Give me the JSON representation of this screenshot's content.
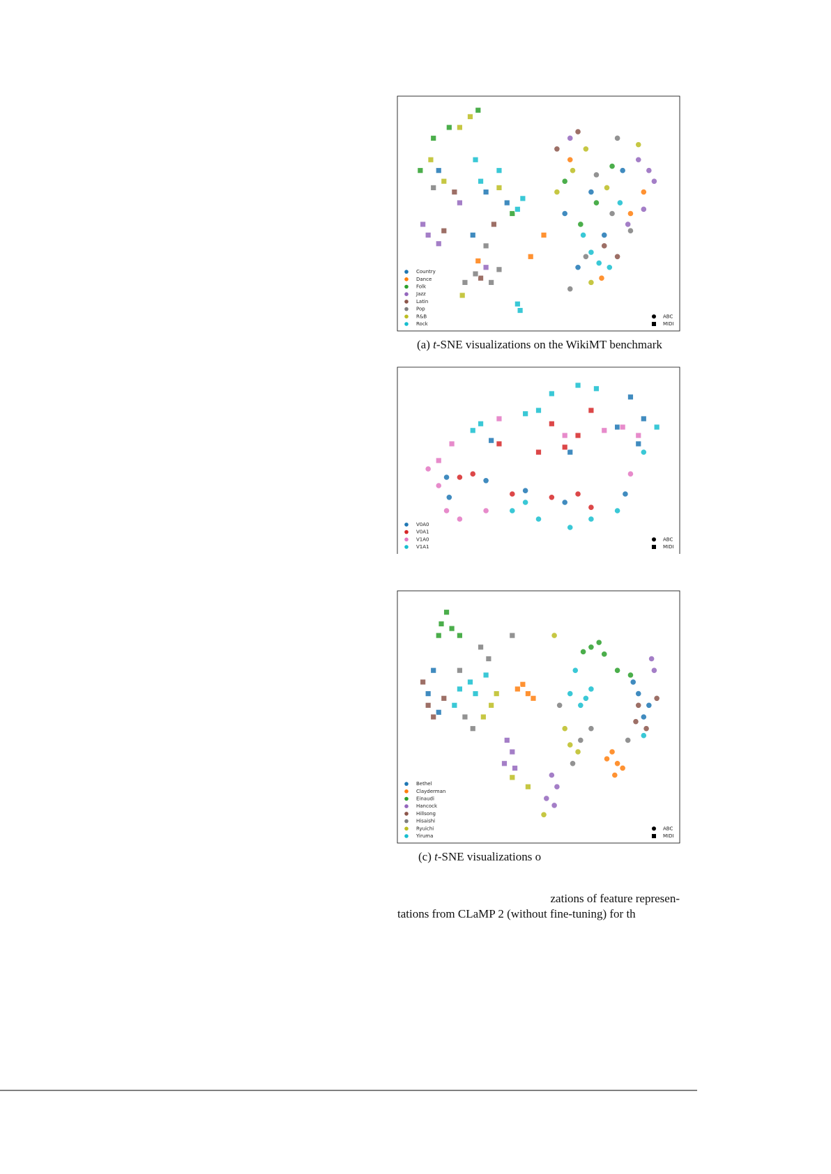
{
  "chart_data": [
    {
      "type": "scatter",
      "xlim": [
        0,
        100
      ],
      "ylim": [
        0,
        100
      ],
      "caption": {
        "prefix": "(a) ",
        "italic": "t",
        "text": "-SNE visualizations on the WikiMT benchmark"
      },
      "marker_legend": [
        {
          "label": "ABC",
          "marker": "circle"
        },
        {
          "label": "MIDI",
          "marker": "square"
        }
      ],
      "series": [
        {
          "name": "Country",
          "color": "#1f77b4",
          "groups": [
            {
              "marker": "square",
              "x": [
                30,
                25,
                38,
                12
              ],
              "y": [
                60,
                40,
                55,
                70
              ]
            },
            {
              "marker": "circle",
              "x": [
                60,
                70,
                82,
                65,
                75
              ],
              "y": [
                50,
                60,
                70,
                25,
                40
              ]
            }
          ]
        },
        {
          "name": "Dance",
          "color": "#ff7f0e",
          "groups": [
            {
              "marker": "square",
              "x": [
                47,
                52,
                27
              ],
              "y": [
                30,
                40,
                28
              ]
            },
            {
              "marker": "circle",
              "x": [
                62,
                85,
                74,
                90
              ],
              "y": [
                75,
                50,
                20,
                60
              ]
            }
          ]
        },
        {
          "name": "Folk",
          "color": "#2ca02c",
          "groups": [
            {
              "marker": "square",
              "x": [
                10,
                16,
                27,
                5,
                40
              ],
              "y": [
                85,
                90,
                98,
                70,
                50
              ]
            },
            {
              "marker": "circle",
              "x": [
                60,
                66,
                72,
                78
              ],
              "y": [
                65,
                45,
                55,
                72
              ]
            }
          ]
        },
        {
          "name": "Jazz",
          "color": "#9467bd",
          "groups": [
            {
              "marker": "square",
              "x": [
                8,
                12,
                6,
                30,
                20
              ],
              "y": [
                40,
                36,
                45,
                25,
                55
              ]
            },
            {
              "marker": "circle",
              "x": [
                92,
                94,
                88,
                84,
                90,
                62
              ],
              "y": [
                70,
                65,
                75,
                45,
                52,
                85
              ]
            }
          ]
        },
        {
          "name": "Latin",
          "color": "#8c564b",
          "groups": [
            {
              "marker": "square",
              "x": [
                14,
                28,
                33,
                18
              ],
              "y": [
                42,
                20,
                45,
                60
              ]
            },
            {
              "marker": "circle",
              "x": [
                57,
                65,
                75,
                80
              ],
              "y": [
                80,
                88,
                35,
                30
              ]
            }
          ]
        },
        {
          "name": "Pop",
          "color": "#7f7f7f",
          "groups": [
            {
              "marker": "square",
              "x": [
                26,
                22,
                32,
                30,
                35,
                10
              ],
              "y": [
                22,
                18,
                18,
                35,
                24,
                62
              ]
            },
            {
              "marker": "circle",
              "x": [
                68,
                78,
                85,
                62,
                72,
                80
              ],
              "y": [
                30,
                50,
                42,
                15,
                68,
                85
              ]
            }
          ]
        },
        {
          "name": "R&B",
          "color": "#bcbd22",
          "groups": [
            {
              "marker": "square",
              "x": [
                20,
                24,
                9,
                14,
                35,
                21
              ],
              "y": [
                90,
                95,
                75,
                65,
                62,
                12
              ]
            },
            {
              "marker": "circle",
              "x": [
                57,
                63,
                68,
                76,
                70,
                88
              ],
              "y": [
                60,
                70,
                80,
                62,
                18,
                82
              ]
            }
          ]
        },
        {
          "name": "Rock",
          "color": "#17becf",
          "groups": [
            {
              "marker": "square",
              "x": [
                28,
                35,
                42,
                26,
                44,
                42,
                43
              ],
              "y": [
                65,
                70,
                52,
                75,
                57,
                8,
                5
              ]
            },
            {
              "marker": "circle",
              "x": [
                70,
                73,
                67,
                77,
                81
              ],
              "y": [
                32,
                27,
                40,
                25,
                55
              ]
            }
          ]
        }
      ]
    },
    {
      "type": "scatter",
      "xlim": [
        0,
        100
      ],
      "ylim": [
        0,
        100
      ],
      "marker_legend": [
        {
          "label": "ABC",
          "marker": "circle"
        },
        {
          "label": "MIDI",
          "marker": "square"
        }
      ],
      "series": [
        {
          "name": "V0A0",
          "color": "#1f77b4",
          "groups": [
            {
              "marker": "square",
              "x": [
                62,
                80,
                85,
                90,
                32,
                88
              ],
              "y": [
                55,
                70,
                88,
                75,
                62,
                60
              ]
            },
            {
              "marker": "circle",
              "x": [
                16,
                30,
                45,
                60,
                83,
                15
              ],
              "y": [
                28,
                38,
                32,
                25,
                30,
                40
              ]
            }
          ]
        },
        {
          "name": "V0A1",
          "color": "#d62728",
          "groups": [
            {
              "marker": "square",
              "x": [
                35,
                55,
                65,
                70,
                60,
                50
              ],
              "y": [
                60,
                72,
                65,
                80,
                58,
                55
              ]
            },
            {
              "marker": "circle",
              "x": [
                20,
                25,
                40,
                55,
                70,
                65
              ],
              "y": [
                40,
                42,
                30,
                28,
                22,
                30
              ]
            }
          ]
        },
        {
          "name": "V1A0",
          "color": "#e377c2",
          "groups": [
            {
              "marker": "square",
              "x": [
                17,
                12,
                35,
                60,
                75,
                88,
                82
              ],
              "y": [
                60,
                50,
                75,
                65,
                68,
                65,
                70
              ]
            },
            {
              "marker": "circle",
              "x": [
                8,
                15,
                20,
                12,
                30,
                85
              ],
              "y": [
                45,
                20,
                15,
                35,
                20,
                42
              ]
            }
          ]
        },
        {
          "name": "V1A1",
          "color": "#17becf",
          "groups": [
            {
              "marker": "square",
              "x": [
                25,
                28,
                45,
                55,
                65,
                72,
                50,
                95
              ],
              "y": [
                68,
                72,
                78,
                90,
                95,
                93,
                80,
                70
              ]
            },
            {
              "marker": "circle",
              "x": [
                40,
                50,
                62,
                70,
                80,
                90,
                45
              ],
              "y": [
                20,
                15,
                10,
                15,
                20,
                55,
                25
              ]
            }
          ]
        }
      ]
    },
    {
      "type": "scatter",
      "xlim": [
        0,
        100
      ],
      "ylim": [
        0,
        100
      ],
      "caption": {
        "prefix": "(c) ",
        "italic": "t",
        "text": "-SNE visualizations o"
      },
      "marker_legend": [
        {
          "label": "ABC",
          "marker": "circle"
        },
        {
          "label": "MIDI",
          "marker": "square"
        }
      ],
      "series": [
        {
          "name": "Bethel",
          "color": "#1f77b4",
          "groups": [
            {
              "marker": "square",
              "x": [
                8,
                12,
                10
              ],
              "y": [
                60,
                52,
                70
              ]
            },
            {
              "marker": "circle",
              "x": [
                88,
                92,
                86,
                90
              ],
              "y": [
                60,
                55,
                65,
                50
              ]
            }
          ]
        },
        {
          "name": "Clayderman",
          "color": "#ff7f0e",
          "groups": [
            {
              "marker": "square",
              "x": [
                44,
                46,
                48,
                42
              ],
              "y": [
                64,
                60,
                58,
                62
              ]
            },
            {
              "marker": "circle",
              "x": [
                78,
                80,
                82,
                79,
                76
              ],
              "y": [
                35,
                30,
                28,
                25,
                32
              ]
            }
          ]
        },
        {
          "name": "Einaudi",
          "color": "#2ca02c",
          "groups": [
            {
              "marker": "square",
              "x": [
                13,
                15,
                17,
                20,
                12
              ],
              "y": [
                90,
                95,
                88,
                85,
                85
              ]
            },
            {
              "marker": "circle",
              "x": [
                70,
                73,
                75,
                67,
                80,
                85
              ],
              "y": [
                80,
                82,
                77,
                78,
                70,
                68
              ]
            }
          ]
        },
        {
          "name": "Hancock",
          "color": "#9467bd",
          "groups": [
            {
              "marker": "square",
              "x": [
                38,
                40,
                37,
                41
              ],
              "y": [
                40,
                35,
                30,
                28
              ]
            },
            {
              "marker": "circle",
              "x": [
                55,
                57,
                56,
                53,
                93,
                94
              ],
              "y": [
                25,
                20,
                12,
                15,
                75,
                70
              ]
            }
          ]
        },
        {
          "name": "Hillsong",
          "color": "#8c564b",
          "groups": [
            {
              "marker": "square",
              "x": [
                6,
                8,
                10,
                14
              ],
              "y": [
                65,
                55,
                50,
                58
              ]
            },
            {
              "marker": "circle",
              "x": [
                88,
                91,
                87,
                95
              ],
              "y": [
                55,
                45,
                48,
                58
              ]
            }
          ]
        },
        {
          "name": "Hisaishi",
          "color": "#7f7f7f",
          "groups": [
            {
              "marker": "square",
              "x": [
                20,
                28,
                31,
                22,
                25,
                40
              ],
              "y": [
                70,
                80,
                75,
                50,
                45,
                85
              ]
            },
            {
              "marker": "circle",
              "x": [
                58,
                66,
                70,
                63,
                84
              ],
              "y": [
                55,
                40,
                45,
                30,
                40
              ]
            }
          ]
        },
        {
          "name": "Ryuichi",
          "color": "#bcbd22",
          "groups": [
            {
              "marker": "square",
              "x": [
                32,
                34,
                29,
                40,
                46
              ],
              "y": [
                55,
                60,
                50,
                24,
                20
              ]
            },
            {
              "marker": "circle",
              "x": [
                60,
                62,
                56,
                65,
                52
              ],
              "y": [
                45,
                38,
                85,
                35,
                8
              ]
            }
          ]
        },
        {
          "name": "Yiruma",
          "color": "#17becf",
          "groups": [
            {
              "marker": "square",
              "x": [
                24,
                26,
                30,
                18,
                20
              ],
              "y": [
                65,
                60,
                68,
                55,
                62
              ]
            },
            {
              "marker": "circle",
              "x": [
                62,
                66,
                68,
                70,
                90,
                64
              ],
              "y": [
                60,
                55,
                58,
                62,
                42,
                70
              ]
            }
          ]
        }
      ]
    }
  ],
  "body_text": [
    "zations of feature represen-",
    "tations from CLaMP 2 (without fine-tuning) for th"
  ]
}
